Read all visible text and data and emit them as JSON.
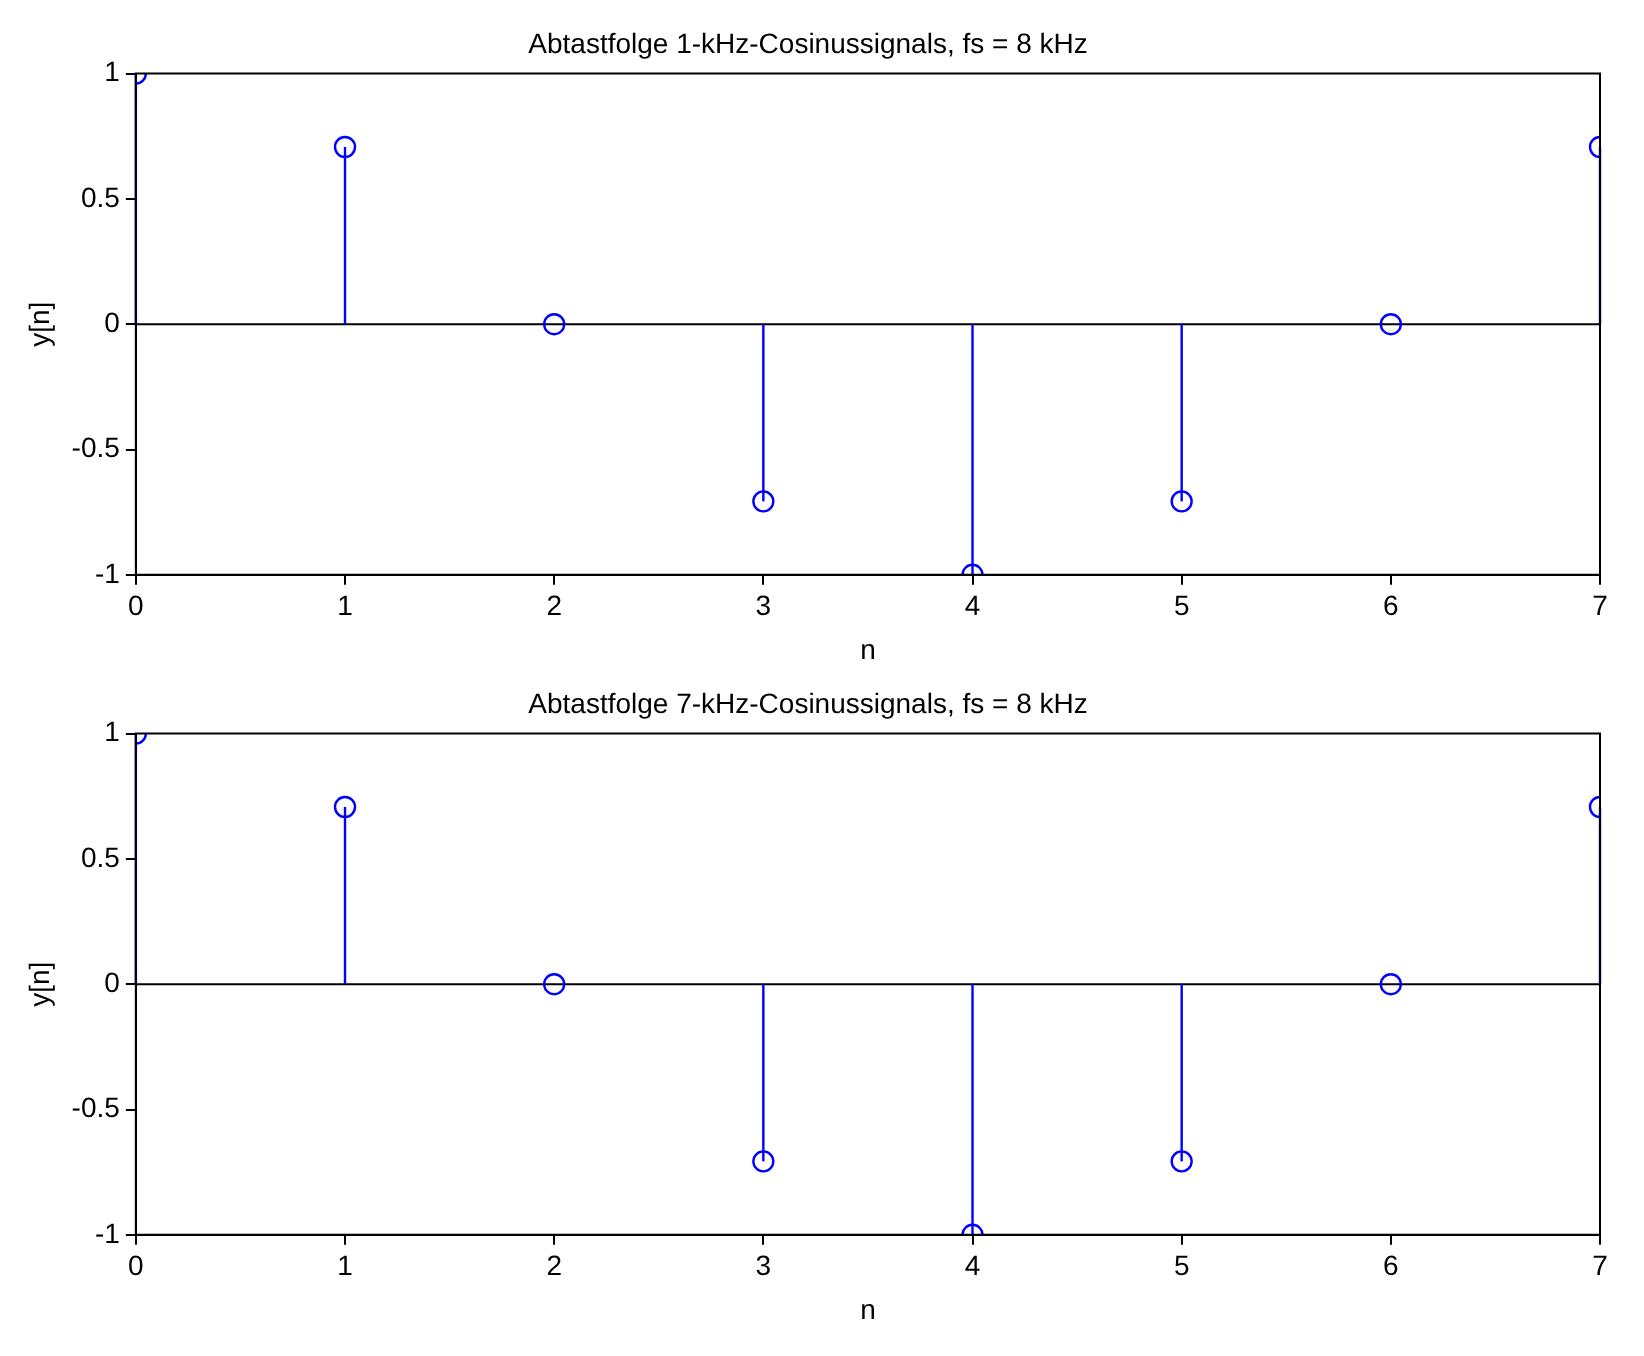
{
  "chart_data": [
    {
      "type": "lollipop",
      "title": "Abtastfolge 1-kHz-Cosinussignals, fs = 8 kHz",
      "xlabel": "n",
      "ylabel": "y[n]",
      "x": [
        0,
        1,
        2,
        3,
        4,
        5,
        6,
        7
      ],
      "series": [
        {
          "color": "#0000ff",
          "values": [
            1,
            0.707,
            0,
            -0.707,
            -1,
            -0.707,
            0,
            0.707
          ]
        }
      ],
      "xlim": [
        0,
        7
      ],
      "xticks": [
        0,
        1,
        2,
        3,
        4,
        5,
        6,
        7
      ],
      "ylim": [
        -1,
        1
      ],
      "yticks": [
        -1,
        -0.5,
        0,
        0.5,
        1
      ],
      "grid": false,
      "legend": false,
      "marker": "circle",
      "ref_lines": [
        {
          "axis": "y",
          "value": 0,
          "color": "#000000"
        }
      ]
    },
    {
      "type": "lollipop",
      "title": "Abtastfolge 7-kHz-Cosinussignals, fs = 8 kHz",
      "xlabel": "n",
      "ylabel": "y[n]",
      "x": [
        0,
        1,
        2,
        3,
        4,
        5,
        6,
        7
      ],
      "series": [
        {
          "color": "#0000ff",
          "values": [
            1,
            0.707,
            0,
            -0.707,
            -1,
            -0.707,
            0,
            0.707
          ]
        }
      ],
      "xlim": [
        0,
        7
      ],
      "xticks": [
        0,
        1,
        2,
        3,
        4,
        5,
        6,
        7
      ],
      "ylim": [
        -1,
        1
      ],
      "yticks": [
        -1,
        -0.5,
        0,
        0.5,
        1
      ],
      "grid": false,
      "legend": false,
      "marker": "circle",
      "ref_lines": [
        {
          "axis": "y",
          "value": 0,
          "color": "#000000"
        }
      ]
    }
  ]
}
